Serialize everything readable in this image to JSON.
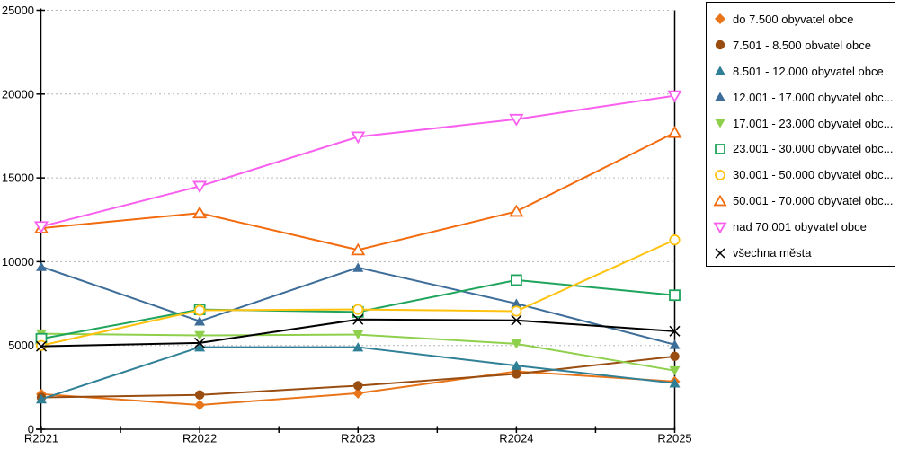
{
  "chart_data": {
    "type": "line",
    "title": "",
    "xlabel": "",
    "ylabel": "",
    "x_categories": [
      "R2021",
      "R2022",
      "R2023",
      "R2024",
      "R2025"
    ],
    "ylim": [
      0,
      25000
    ],
    "ytick_step": 5000,
    "ytick_labels": [
      "0",
      "5000",
      "10000",
      "15000",
      "20000",
      "25000"
    ],
    "grid": "horizontal-dotted",
    "grid_color": "#b6b6b6",
    "axis_color": "#000000",
    "legend_position": "right",
    "series": [
      {
        "name": "do 7.500 obyvatel obce",
        "marker": "diamond-filled",
        "color": "#e8751a",
        "values": [
          2100,
          1450,
          2150,
          3450,
          2850
        ]
      },
      {
        "name": "7.501 - 8.500 obvatel obce",
        "marker": "circle-filled",
        "color": "#9a4d10",
        "values": [
          1900,
          2050,
          2600,
          3300,
          4350
        ]
      },
      {
        "name": "8.501 - 12.000 obyvatel obce",
        "marker": "triangle-up-filled",
        "color": "#2f7f96",
        "values": [
          1800,
          4900,
          4900,
          3800,
          2750
        ]
      },
      {
        "name": "12.001 - 17.000 obyvatel obc...",
        "marker": "triangle-up-filled",
        "color": "#3d6d99",
        "values": [
          9700,
          6450,
          9650,
          7500,
          5050
        ]
      },
      {
        "name": "17.001 - 23.000 obyvatel obc...",
        "marker": "triangle-down-filled",
        "color": "#8ed04c",
        "values": [
          5700,
          5600,
          5650,
          5100,
          3500
        ]
      },
      {
        "name": "23.001 - 30.000 obyvatel obc...",
        "marker": "square-open",
        "color": "#1ea45c",
        "values": [
          5400,
          7150,
          7000,
          8900,
          8000
        ]
      },
      {
        "name": "30.001 - 50.000 obyvatel obc...",
        "marker": "circle-open",
        "color": "#ffc20e",
        "values": [
          5000,
          7100,
          7150,
          7050,
          11300
        ]
      },
      {
        "name": "50.001 - 70.000 obyvatel obc...",
        "marker": "triangle-up-open",
        "color": "#f26b0e",
        "values": [
          12000,
          12900,
          10700,
          13000,
          17700
        ]
      },
      {
        "name": "nad 70.001 obyvatel obce",
        "marker": "triangle-down-open",
        "color": "#f95fef",
        "values": [
          12100,
          14500,
          17450,
          18500,
          19900
        ]
      },
      {
        "name": "všechna města",
        "marker": "x",
        "color": "#000000",
        "values": [
          4950,
          5150,
          6550,
          6500,
          5850
        ]
      }
    ]
  }
}
